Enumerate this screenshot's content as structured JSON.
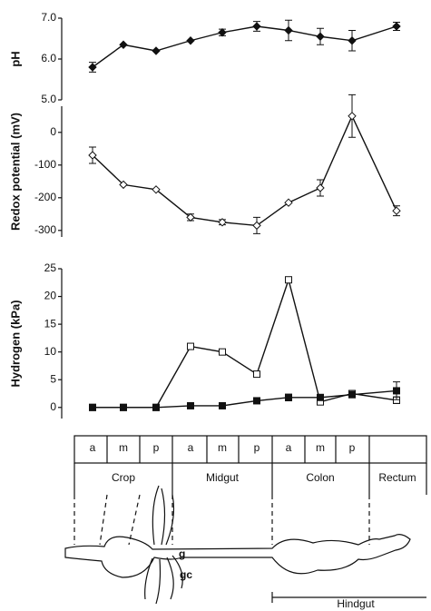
{
  "chart_data": [
    {
      "type": "line",
      "y_label": "pH",
      "ylim": [
        5,
        7
      ],
      "yticks": [
        {
          "value": 5,
          "label": "5.0"
        },
        {
          "value": 6,
          "label": "6.0"
        },
        {
          "value": 7,
          "label": "7.0"
        }
      ],
      "series": [
        {
          "color": "#111111",
          "marker": "diamond",
          "filled": true,
          "values": [
            5.8,
            6.35,
            6.2,
            6.45,
            6.65,
            6.8,
            6.7,
            6.55,
            6.45,
            6.8
          ],
          "errors": [
            0.12,
            null,
            null,
            null,
            0.08,
            0.12,
            0.25,
            0.2,
            0.25,
            0.1
          ]
        }
      ]
    },
    {
      "type": "line",
      "y_label": "Redox potential (mV)",
      "ylim": [
        -320,
        80
      ],
      "yticks": [
        0,
        -100,
        -200,
        -300
      ],
      "series": [
        {
          "color": "#111111",
          "marker": "diamond",
          "filled": false,
          "values": [
            -70,
            -160,
            -175,
            -260,
            -275,
            -285,
            -215,
            -170,
            50,
            -240
          ],
          "errors": [
            25,
            null,
            null,
            10,
            8,
            25,
            null,
            25,
            65,
            15
          ]
        }
      ]
    },
    {
      "type": "line",
      "y_label": "Hydrogen  (kPa)",
      "ylim": [
        -2,
        25
      ],
      "yticks": [
        0,
        5,
        10,
        15,
        20,
        25
      ],
      "categories": [
        "a",
        "m",
        "p",
        "a",
        "m",
        "p",
        "a",
        "m",
        "p",
        null
      ],
      "series": [
        {
          "color": "#111111",
          "marker": "square",
          "filled": false,
          "values": [
            0,
            0,
            0,
            11,
            10,
            6,
            23,
            1,
            2.5,
            1.3
          ],
          "errors": [
            null,
            null,
            null,
            null,
            null,
            null,
            null,
            null,
            null,
            0.6
          ]
        },
        {
          "color": "#111111",
          "marker": "square",
          "filled": true,
          "values": [
            0,
            0,
            0,
            0.3,
            0.3,
            1.2,
            1.8,
            1.8,
            2.3,
            3
          ],
          "errors": [
            null,
            null,
            null,
            null,
            null,
            0.4,
            0.6,
            0.5,
            0.4,
            1.6
          ]
        }
      ]
    }
  ],
  "diagram": {
    "regions": [
      "Crop",
      "Midgut",
      "Colon",
      "Rectum"
    ],
    "gizzard": "g",
    "gastric_caeca": "gc",
    "hindgut": "Hindgut"
  }
}
